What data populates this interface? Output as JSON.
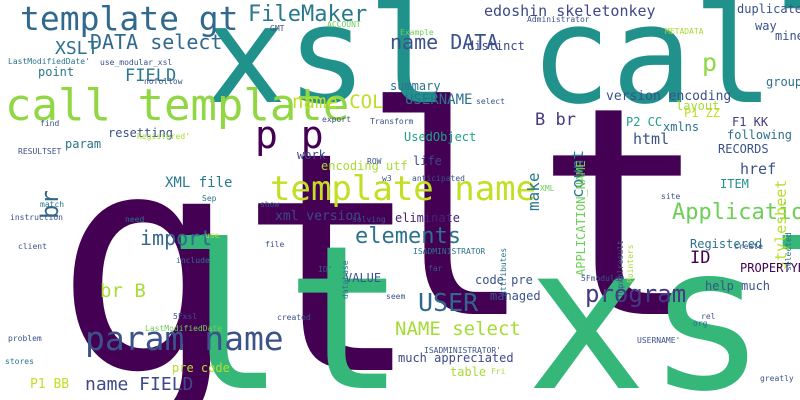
{
  "words": [
    {
      "text": "gt",
      "color": "#440154"
    },
    {
      "text": "lt",
      "color": "#440154"
    },
    {
      "text": "lt xsl",
      "color": "#35b779"
    },
    {
      "text": "xsl call",
      "color": "#21918c"
    },
    {
      "text": "call template",
      "color": "#90d743"
    },
    {
      "text": "template gt",
      "color": "#31688e"
    },
    {
      "text": "template name",
      "color": "#c2df23"
    },
    {
      "text": "param name",
      "color": "#3b528b"
    },
    {
      "text": "program",
      "color": "#443983"
    },
    {
      "text": "p p",
      "color": "#440154"
    },
    {
      "text": "FileMaker",
      "color": "#2a788e"
    },
    {
      "text": "USER",
      "color": "#31688e"
    },
    {
      "text": "elements",
      "color": "#2c728e"
    },
    {
      "text": "Application",
      "color": "#6ece58"
    },
    {
      "text": "import",
      "color": "#31688e"
    },
    {
      "text": "name COL",
      "color": "#bddf26"
    },
    {
      "text": "NAME select",
      "color": "#a5db36"
    },
    {
      "text": "DATA select",
      "color": "#31688e"
    },
    {
      "text": "name DATA",
      "color": "#3b528b"
    },
    {
      "text": "name FIELD",
      "color": "#3e4989"
    },
    {
      "text": "XSLT",
      "color": "#2c728e"
    },
    {
      "text": "FIELD",
      "color": "#2a788e"
    },
    {
      "text": "edoshin skeletonkey",
      "color": "#3e4989"
    },
    {
      "text": "p",
      "color": "#90d743"
    },
    {
      "text": "br",
      "color": "#31688e"
    },
    {
      "text": "br B",
      "color": "#a8db34"
    },
    {
      "text": "B br",
      "color": "#443983"
    },
    {
      "text": "count",
      "color": "#2a788e"
    },
    {
      "text": "html",
      "color": "#3b528b"
    },
    {
      "text": "href",
      "color": "#3b528b"
    },
    {
      "text": "ID",
      "color": "#440154"
    },
    {
      "text": "USERNAME",
      "color": "#2c728e"
    },
    {
      "text": "stylesheet",
      "color": "#b5de2b"
    },
    {
      "text": "make",
      "color": "#2a788e"
    },
    {
      "text": "XML file",
      "color": "#2a788e"
    },
    {
      "text": "xml version",
      "color": "#3e4989"
    },
    {
      "text": "encoding utf",
      "color": "#a8db34"
    },
    {
      "text": "version encoding",
      "color": "#3b528b"
    },
    {
      "text": "ITEM",
      "color": "#21918c"
    },
    {
      "text": "Registered",
      "color": "#2c728e"
    },
    {
      "text": "PROPERTYBAG",
      "color": "#440154"
    },
    {
      "text": "VALUE",
      "color": "#3b528b"
    },
    {
      "text": "code pre",
      "color": "#3b528b"
    },
    {
      "text": "managed",
      "color": "#3b528b"
    },
    {
      "text": "pre code",
      "color": "#b5de2b"
    },
    {
      "text": "table",
      "color": "#a8db34"
    },
    {
      "text": "much appreciated",
      "color": "#3e4989"
    },
    {
      "text": "help much",
      "color": "#3b528b"
    },
    {
      "text": "P1 BB",
      "color": "#c2df23"
    },
    {
      "text": "point",
      "color": "#2a788e"
    },
    {
      "text": "summary",
      "color": "#2c728e"
    },
    {
      "text": "distinct",
      "color": "#3e4989"
    },
    {
      "text": "resetting",
      "color": "#3b528b"
    },
    {
      "text": "param",
      "color": "#2c728e"
    },
    {
      "text": "xmlns",
      "color": "#2c728e"
    },
    {
      "text": "UsedObject",
      "color": "#1fa187"
    },
    {
      "text": "eliminate",
      "color": "#482173"
    },
    {
      "text": "APPLICATION_NAME",
      "color": "#6ece58"
    },
    {
      "text": "work",
      "color": "#3e4989"
    },
    {
      "text": "life",
      "color": "#3e4989"
    },
    {
      "text": "P2 CC",
      "color": "#1fa187"
    },
    {
      "text": "P1 ZZ",
      "color": "#c2df23"
    },
    {
      "text": "F1 KK",
      "color": "#443983"
    },
    {
      "text": "group",
      "color": "#2c728e"
    },
    {
      "text": "layout",
      "color": "#a8db34"
    },
    {
      "text": "duplicate",
      "color": "#3b528b"
    },
    {
      "text": "way",
      "color": "#3b528b"
    },
    {
      "text": "mine",
      "color": "#3b528b"
    },
    {
      "text": "RECORDS",
      "color": "#3b528b"
    },
    {
      "text": "following",
      "color": "#2c728e"
    },
    {
      "text": "Administrator",
      "color": "#3b528b"
    },
    {
      "text": "METADATA",
      "color": "#a8db34"
    },
    {
      "text": "Example",
      "color": "#6ece58"
    },
    {
      "text": "ACCOUNT",
      "color": "#6ece58"
    },
    {
      "text": "GMT",
      "color": "#3b528b"
    },
    {
      "text": "use_modular_xsl",
      "color": "#3b528b"
    },
    {
      "text": "LastModifiedDate'",
      "color": "#2c728e"
    },
    {
      "text": "nofollow",
      "color": "#3b528b"
    },
    {
      "text": "Registered'",
      "color": "#a5db36"
    },
    {
      "text": "find",
      "color": "#3b528b"
    },
    {
      "text": "RESULTSET",
      "color": "#3b528b"
    },
    {
      "text": "instruction",
      "color": "#3b528b"
    },
    {
      "text": "match",
      "color": "#2a788e"
    },
    {
      "text": "client",
      "color": "#3b528b"
    },
    {
      "text": "problem",
      "color": "#3b528b"
    },
    {
      "text": "stores",
      "color": "#2c728e"
    },
    {
      "text": "Transform",
      "color": "#3b528b"
    },
    {
      "text": "export",
      "color": "#3b528b"
    },
    {
      "text": "select",
      "color": "#3b528b"
    },
    {
      "text": "ROW",
      "color": "#3b528b"
    },
    {
      "text": "w3",
      "color": "#3b528b"
    },
    {
      "text": "anticipated",
      "color": "#3b528b"
    },
    {
      "text": "show",
      "color": "#3b528b"
    },
    {
      "text": "solving",
      "color": "#3b528b"
    },
    {
      "text": "Sep",
      "color": "#2c728e"
    },
    {
      "text": "need",
      "color": "#2c728e"
    },
    {
      "text": "use",
      "color": "#a8db34"
    },
    {
      "text": "file",
      "color": "#3b528b"
    },
    {
      "text": "include",
      "color": "#2c728e"
    },
    {
      "text": "ID'",
      "color": "#3b528b"
    },
    {
      "text": "database",
      "color": "#2c728e"
    },
    {
      "text": "ISADMINISTRATOR",
      "color": "#2c728e"
    },
    {
      "text": "far",
      "color": "#3b528b"
    },
    {
      "text": "attributes",
      "color": "#2c728e"
    },
    {
      "text": "XML",
      "color": "#6ece58"
    },
    {
      "text": "fmpxmlresult",
      "color": "#3b528b"
    },
    {
      "text": "Pointers",
      "color": "#a8db34"
    },
    {
      "text": "site",
      "color": "#3b528b"
    },
    {
      "text": "selected",
      "color": "#2c728e"
    },
    {
      "text": "create",
      "color": "#3b528b"
    },
    {
      "text": "5Fmodular",
      "color": "#3b528b"
    },
    {
      "text": "seem",
      "color": "#3b528b"
    },
    {
      "text": "rel",
      "color": "#3b528b"
    },
    {
      "text": "org",
      "color": "#2c728e"
    },
    {
      "text": "created",
      "color": "#3b528b"
    },
    {
      "text": "5Fxsl",
      "color": "#3b528b"
    },
    {
      "text": "LastModifiedDate",
      "color": "#6ece58"
    },
    {
      "text": "ISADMINISTRATOR'",
      "color": "#3b528b"
    },
    {
      "text": "USERNAME'",
      "color": "#3b528b"
    },
    {
      "text": "Fri",
      "color": "#a8db34"
    },
    {
      "text": "greatly",
      "color": "#3b528b"
    }
  ]
}
